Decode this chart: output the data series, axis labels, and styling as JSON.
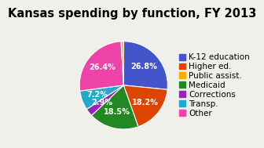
{
  "title": "Kansas spending by function, FY 2013",
  "labels": [
    "K-12 education",
    "Higher ed.",
    "Public assist.",
    "Medicaid",
    "Corrections",
    "Transp.",
    "Other"
  ],
  "values": [
    26.8,
    18.2,
    0.9,
    18.5,
    2.9,
    7.2,
    26.4
  ],
  "plot_order": [
    "K-12 education",
    "Higher ed.",
    "Medicaid",
    "Corrections",
    "Transp.",
    "Other",
    "Public assist."
  ],
  "colors": {
    "K-12 education": "#4455cc",
    "Higher ed.": "#dd4400",
    "Public assist.": "#ffaa00",
    "Medicaid": "#228822",
    "Corrections": "#9922bb",
    "Transp.": "#22aacc",
    "Other": "#ee44aa"
  },
  "text_color": "#ffffff",
  "background_color": "#f0f0eb",
  "startangle": 90,
  "title_fontsize": 10.5,
  "legend_fontsize": 7.5
}
